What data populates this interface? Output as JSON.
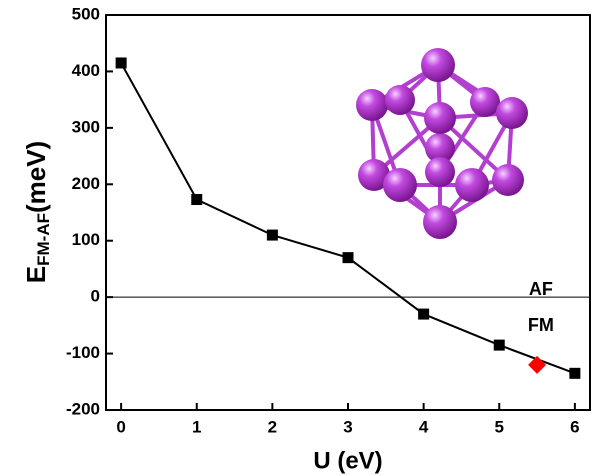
{
  "chart_data": {
    "type": "line",
    "xlabel": "U (eV)",
    "ylabel_parts": [
      "E",
      "FM-AF",
      "(meV)"
    ],
    "xlim": [
      -0.2,
      6.2
    ],
    "xticks": [
      0,
      1,
      2,
      3,
      4,
      5,
      6
    ],
    "ylim": [
      -200,
      500
    ],
    "yticks": [
      -200,
      -100,
      0,
      100,
      200,
      300,
      400,
      500
    ],
    "reference_line": 0,
    "annotations": [
      {
        "text": "AF",
        "x": 5.55,
        "y": 12
      },
      {
        "text": "FM",
        "x": 5.55,
        "y": -52
      }
    ],
    "series": [
      {
        "x": [
          0,
          1,
          2,
          3,
          4,
          5,
          6
        ],
        "values": [
          415,
          173,
          110,
          70,
          -30,
          -85,
          -135
        ],
        "color": "#000000",
        "marker": "square",
        "line": true
      },
      {
        "x": [
          5.5
        ],
        "values": [
          -120
        ],
        "color": "#ff0000",
        "marker": "diamond",
        "line": false
      }
    ]
  }
}
